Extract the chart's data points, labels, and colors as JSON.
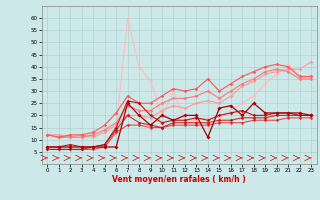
{
  "xlabel": "Vent moyen/en rafales ( km/h )",
  "xlim": [
    -0.5,
    23.5
  ],
  "ylim": [
    0,
    65
  ],
  "yticks": [
    5,
    10,
    15,
    20,
    25,
    30,
    35,
    40,
    45,
    50,
    55,
    60
  ],
  "xticks": [
    0,
    1,
    2,
    3,
    4,
    5,
    6,
    7,
    8,
    9,
    10,
    11,
    12,
    13,
    14,
    15,
    16,
    17,
    18,
    19,
    20,
    21,
    22,
    23
  ],
  "bg_color": "#cce8e8",
  "grid_color": "#aacccc",
  "series": [
    {
      "x": [
        0,
        1,
        2,
        3,
        4,
        5,
        6,
        7,
        8,
        9,
        10,
        11,
        12,
        13,
        14,
        15,
        16,
        17,
        18,
        19,
        20,
        21,
        22,
        23
      ],
      "y": [
        7,
        7,
        7,
        7,
        7,
        8,
        15,
        60,
        40,
        34,
        20,
        30,
        18,
        18,
        19,
        19,
        22,
        25,
        28,
        33,
        37,
        41,
        36,
        36
      ],
      "color": "#ffbbbb",
      "linewidth": 0.8,
      "markersize": 1.8,
      "alpha": 1.0
    },
    {
      "x": [
        0,
        1,
        2,
        3,
        4,
        5,
        6,
        7,
        8,
        9,
        10,
        11,
        12,
        13,
        14,
        15,
        16,
        17,
        18,
        19,
        20,
        21,
        22,
        23
      ],
      "y": [
        12,
        12,
        11,
        12,
        11,
        13,
        16,
        20,
        20,
        19,
        22,
        24,
        23,
        25,
        26,
        25,
        28,
        32,
        34,
        37,
        38,
        39,
        39,
        42
      ],
      "color": "#ff9999",
      "linewidth": 0.8,
      "markersize": 1.8,
      "alpha": 1.0
    },
    {
      "x": [
        0,
        1,
        2,
        3,
        4,
        5,
        6,
        7,
        8,
        9,
        10,
        11,
        12,
        13,
        14,
        15,
        16,
        17,
        18,
        19,
        20,
        21,
        22,
        23
      ],
      "y": [
        12,
        11,
        11,
        11,
        12,
        14,
        17,
        24,
        22,
        22,
        25,
        27,
        27,
        28,
        30,
        27,
        30,
        33,
        35,
        38,
        39,
        38,
        35,
        35
      ],
      "color": "#ff7777",
      "linewidth": 0.8,
      "markersize": 1.8,
      "alpha": 1.0
    },
    {
      "x": [
        0,
        1,
        2,
        3,
        4,
        5,
        6,
        7,
        8,
        9,
        10,
        11,
        12,
        13,
        14,
        15,
        16,
        17,
        18,
        19,
        20,
        21,
        22,
        23
      ],
      "y": [
        12,
        11,
        12,
        12,
        13,
        16,
        21,
        28,
        25,
        25,
        28,
        31,
        30,
        31,
        35,
        30,
        33,
        36,
        38,
        40,
        41,
        40,
        36,
        36
      ],
      "color": "#ff5555",
      "linewidth": 0.8,
      "markersize": 1.8,
      "alpha": 1.0
    },
    {
      "x": [
        0,
        1,
        2,
        3,
        4,
        5,
        6,
        7,
        8,
        9,
        10,
        11,
        12,
        13,
        14,
        15,
        16,
        17,
        18,
        19,
        20,
        21,
        22,
        23
      ],
      "y": [
        6,
        6,
        6,
        6,
        6,
        7,
        13,
        16,
        16,
        15,
        15,
        16,
        16,
        16,
        16,
        17,
        17,
        17,
        18,
        18,
        18,
        19,
        19,
        19
      ],
      "color": "#dd1111",
      "linewidth": 0.8,
      "markersize": 1.8,
      "alpha": 0.7
    },
    {
      "x": [
        0,
        1,
        2,
        3,
        4,
        5,
        6,
        7,
        8,
        9,
        10,
        11,
        12,
        13,
        14,
        15,
        16,
        17,
        18,
        19,
        20,
        21,
        22,
        23
      ],
      "y": [
        6,
        6,
        6,
        6,
        7,
        8,
        14,
        20,
        17,
        16,
        15,
        17,
        17,
        17,
        17,
        18,
        18,
        19,
        19,
        19,
        20,
        20,
        20,
        20
      ],
      "color": "#cc0000",
      "linewidth": 0.8,
      "markersize": 1.8,
      "alpha": 0.8
    },
    {
      "x": [
        0,
        1,
        2,
        3,
        4,
        5,
        6,
        7,
        8,
        9,
        10,
        11,
        12,
        13,
        14,
        15,
        16,
        17,
        18,
        19,
        20,
        21,
        22,
        23
      ],
      "y": [
        7,
        7,
        8,
        7,
        7,
        8,
        15,
        26,
        25,
        20,
        17,
        18,
        18,
        19,
        18,
        20,
        21,
        22,
        20,
        20,
        21,
        21,
        20,
        20
      ],
      "color": "#bb0000",
      "linewidth": 0.8,
      "markersize": 1.8,
      "alpha": 0.9
    },
    {
      "x": [
        0,
        1,
        2,
        3,
        4,
        5,
        6,
        7,
        8,
        9,
        10,
        11,
        12,
        13,
        14,
        15,
        16,
        17,
        18,
        19,
        20,
        21,
        22,
        23
      ],
      "y": [
        7,
        7,
        7,
        7,
        7,
        7,
        7,
        25,
        20,
        16,
        20,
        18,
        20,
        20,
        11,
        23,
        24,
        20,
        25,
        21,
        21,
        21,
        21,
        20
      ],
      "color": "#aa0000",
      "linewidth": 0.9,
      "markersize": 2.0,
      "alpha": 1.0
    }
  ]
}
